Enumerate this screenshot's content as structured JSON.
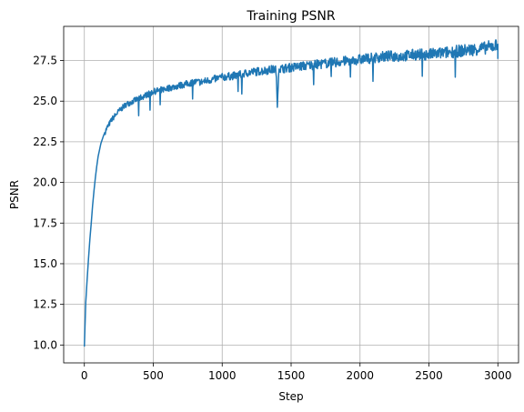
{
  "chart_data": {
    "type": "line",
    "title": "Training PSNR",
    "xlabel": "Step",
    "ylabel": "PSNR",
    "xlim": [
      -150,
      3150
    ],
    "ylim": [
      8.9,
      29.6
    ],
    "xticks": [
      0,
      500,
      1000,
      1500,
      2000,
      2500,
      3000
    ],
    "xtick_labels": [
      "0",
      "500",
      "1000",
      "1500",
      "2000",
      "2500",
      "3000"
    ],
    "yticks": [
      10.0,
      12.5,
      15.0,
      17.5,
      20.0,
      22.5,
      25.0,
      27.5
    ],
    "ytick_labels": [
      "10.0",
      "12.5",
      "15.0",
      "17.5",
      "20.0",
      "22.5",
      "25.0",
      "27.5"
    ],
    "grid": true,
    "series": [
      {
        "color": "#1f77b4",
        "x": [
          0,
          10,
          20,
          30,
          40,
          50,
          60,
          70,
          80,
          90,
          100,
          120,
          140,
          160,
          180,
          200,
          250,
          300,
          350,
          400,
          450,
          500,
          550,
          600,
          650,
          700,
          750,
          800,
          850,
          900,
          950,
          1000,
          1100,
          1200,
          1300,
          1390,
          1400,
          1410,
          1500,
          1600,
          1700,
          1800,
          1900,
          2000,
          2100,
          2200,
          2300,
          2400,
          2500,
          2600,
          2700,
          2800,
          2900,
          3000
        ],
        "y": [
          9.9,
          12.6,
          14.0,
          15.3,
          16.5,
          17.5,
          18.6,
          19.5,
          20.3,
          21.0,
          21.6,
          22.4,
          22.9,
          23.3,
          23.6,
          23.9,
          24.4,
          24.8,
          25.0,
          25.2,
          25.4,
          25.6,
          25.7,
          25.8,
          25.9,
          26.0,
          26.1,
          26.2,
          26.2,
          26.3,
          26.4,
          26.5,
          26.6,
          26.8,
          26.9,
          27.0,
          24.7,
          27.0,
          27.1,
          27.2,
          27.3,
          27.4,
          27.5,
          27.6,
          27.7,
          27.8,
          27.8,
          27.9,
          27.9,
          28.0,
          28.1,
          28.2,
          28.3,
          28.5
        ]
      }
    ]
  }
}
